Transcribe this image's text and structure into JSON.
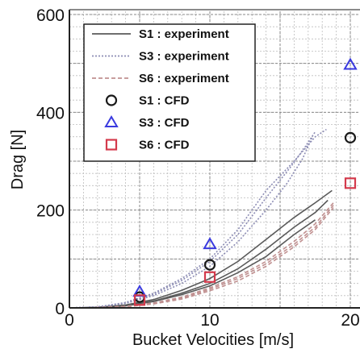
{
  "chart_data": {
    "type": "line",
    "xlabel": "Bucket Velocities [m/s]",
    "ylabel": "Drag [N]",
    "xlim": [
      0,
      20
    ],
    "ylim": [
      0,
      600
    ],
    "xticks": [
      0,
      10,
      20
    ],
    "yticks": [
      0,
      200,
      400,
      600
    ],
    "grid": "on",
    "legend_position": "top-left",
    "series": [
      {
        "name": "S1 : experiment",
        "kind": "line",
        "style": "solid",
        "color": "#5a5a5a",
        "runs": [
          [
            [
              0,
              0
            ],
            [
              2,
              1
            ],
            [
              4,
              5
            ],
            [
              6,
              14
            ],
            [
              8,
              30
            ],
            [
              10,
              50
            ],
            [
              12,
              80
            ],
            [
              14,
              120
            ],
            [
              16,
              165
            ],
            [
              17.5,
              195
            ],
            [
              18.4,
              220
            ]
          ],
          [
            [
              0,
              0
            ],
            [
              2,
              1
            ],
            [
              4,
              6
            ],
            [
              6,
              17
            ],
            [
              8,
              36
            ],
            [
              10,
              60
            ],
            [
              12,
              95
            ],
            [
              14,
              140
            ],
            [
              16,
              185
            ],
            [
              17.5,
              215
            ],
            [
              18.7,
              240
            ]
          ],
          [
            [
              0,
              0
            ],
            [
              2,
              1
            ],
            [
              4,
              4
            ],
            [
              6,
              13
            ],
            [
              8,
              27
            ],
            [
              10,
              45
            ],
            [
              12,
              72
            ],
            [
              14,
              105
            ],
            [
              16,
              150
            ],
            [
              17.5,
              180
            ]
          ]
        ]
      },
      {
        "name": "S3 : experiment",
        "kind": "line",
        "style": "dotted",
        "color": "#8c8cb4",
        "runs": [
          [
            [
              0,
              0
            ],
            [
              2,
              2
            ],
            [
              4,
              9
            ],
            [
              6,
              25
            ],
            [
              8,
              50
            ],
            [
              10,
              85
            ],
            [
              12,
              135
            ],
            [
              14,
              200
            ],
            [
              15.5,
              255
            ],
            [
              16.6,
              305
            ],
            [
              17.3,
              350
            ]
          ],
          [
            [
              0,
              0
            ],
            [
              2,
              2
            ],
            [
              4,
              10
            ],
            [
              6,
              28
            ],
            [
              8,
              56
            ],
            [
              10,
              95
            ],
            [
              12,
              150
            ],
            [
              14,
              225
            ],
            [
              15.8,
              290
            ],
            [
              16.8,
              330
            ],
            [
              17.5,
              360
            ]
          ],
          [
            [
              0,
              0
            ],
            [
              2,
              2
            ],
            [
              4,
              11
            ],
            [
              6,
              30
            ],
            [
              8,
              60
            ],
            [
              10,
              100
            ],
            [
              12,
              160
            ],
            [
              14,
              240
            ],
            [
              16,
              300
            ],
            [
              17.5,
              350
            ],
            [
              18.3,
              365
            ]
          ]
        ]
      },
      {
        "name": "S6 : experiment",
        "kind": "line",
        "style": "dashed",
        "color": "#c09090",
        "runs": [
          [
            [
              0,
              0
            ],
            [
              2,
              0.5
            ],
            [
              4,
              3
            ],
            [
              6,
              9
            ],
            [
              8,
              20
            ],
            [
              10,
              38
            ],
            [
              12,
              60
            ],
            [
              14,
              90
            ],
            [
              16,
              130
            ],
            [
              17.5,
              165
            ],
            [
              18.8,
              210
            ]
          ],
          [
            [
              0,
              0
            ],
            [
              2,
              0.5
            ],
            [
              4,
              3
            ],
            [
              6,
              10
            ],
            [
              8,
              22
            ],
            [
              10,
              41
            ],
            [
              12,
              64
            ],
            [
              14,
              95
            ],
            [
              16,
              136
            ],
            [
              17.5,
              172
            ],
            [
              18.8,
              215
            ]
          ],
          [
            [
              0,
              0
            ],
            [
              2,
              0.5
            ],
            [
              4,
              2
            ],
            [
              6,
              8
            ],
            [
              8,
              18
            ],
            [
              10,
              35
            ],
            [
              12,
              55
            ],
            [
              14,
              85
            ],
            [
              16,
              125
            ],
            [
              17.5,
              160
            ],
            [
              18.8,
              205
            ]
          ]
        ]
      },
      {
        "name": "S1 : CFD",
        "kind": "marker",
        "marker": "circle",
        "color": "#1a1a1a",
        "x": [
          5,
          10,
          20
        ],
        "y": [
          22,
          88,
          348
        ]
      },
      {
        "name": "S3 : CFD",
        "kind": "marker",
        "marker": "triangle",
        "color": "#3a3adf",
        "x": [
          5,
          10,
          20
        ],
        "y": [
          33,
          130,
          497
        ]
      },
      {
        "name": "S6 : CFD",
        "kind": "marker",
        "marker": "square",
        "color": "#d43a4c",
        "x": [
          5,
          10,
          20
        ],
        "y": [
          16,
          63,
          255
        ]
      }
    ]
  }
}
